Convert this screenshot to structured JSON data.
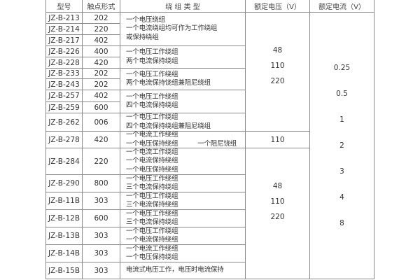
{
  "headers": [
    "型号",
    "触点形式",
    "绕 组 类 型",
    "额定电压（V）",
    "额定电流（V）"
  ],
  "rows": [
    [
      "JZ-B-213",
      "202"
    ],
    [
      "JZ-B-214",
      "220"
    ],
    [
      "JZ-B-217",
      "402"
    ],
    [
      "JZ-B-226",
      "400"
    ],
    [
      "JZ-B-228",
      "420"
    ],
    [
      "JZ-B-233",
      "202"
    ],
    [
      "JZ-B-243",
      "202"
    ],
    [
      "JZ-B-257",
      "402"
    ],
    [
      "JZ-B-259",
      "600"
    ],
    [
      "JZ-B-262",
      "006"
    ],
    [
      "JZ-B-278",
      "420"
    ],
    [
      "JZ-B-284",
      "220"
    ],
    [
      "JZ-B-290",
      "800"
    ],
    [
      "JZ-B-11B",
      "303"
    ],
    [
      "JZ-B-12B",
      "600"
    ],
    [
      "JZ-B-13B",
      "303"
    ],
    [
      "JZ-B-14B",
      "303"
    ],
    [
      "JZ-B-15B",
      "303"
    ]
  ],
  "windings": [
    [
      "一个电压绕组",
      "一个电流绕组均可作为工作绕组",
      "或保持绕组"
    ],
    [
      "一个电压工作绕组",
      "两个电流保持绕组"
    ],
    [
      "一个电压工作绕组",
      "两个电流保持饶组兼阻尼绕组"
    ],
    [
      "一个电压工作绕组",
      "四个电流保持绕组"
    ],
    [
      "一个电压工作绕组",
      "四个电流保持绕组兼阻尼绕组"
    ],
    [
      "一个电流工作绕组",
      "一个电压保持绕组　　　一个阻尼饶组"
    ],
    [
      "一个电流工作绕组",
      "一个电流保持绕组",
      "一个电压保持绕组"
    ],
    [
      "一个电压工作绕组",
      "三个电流保持绕组"
    ],
    [
      "一个电压工作绕组",
      "三个电流保持绕组"
    ],
    [
      "一个电压工作绕组",
      "三个电流保持绕组"
    ],
    [
      "一个电压工作绕组",
      "一个电流保持绕组"
    ],
    [
      "一个电流工作绕组",
      "一个电压保持绕组"
    ],
    [
      "电流式电压工作，电压时电流保持"
    ]
  ],
  "voltages": [
    [
      "48",
      "110",
      "220"
    ],
    [
      "110"
    ],
    [
      "48",
      "110",
      "220"
    ]
  ],
  "currents": [
    "0.25",
    "0.5",
    "1",
    "2",
    "3",
    "4",
    "8"
  ]
}
